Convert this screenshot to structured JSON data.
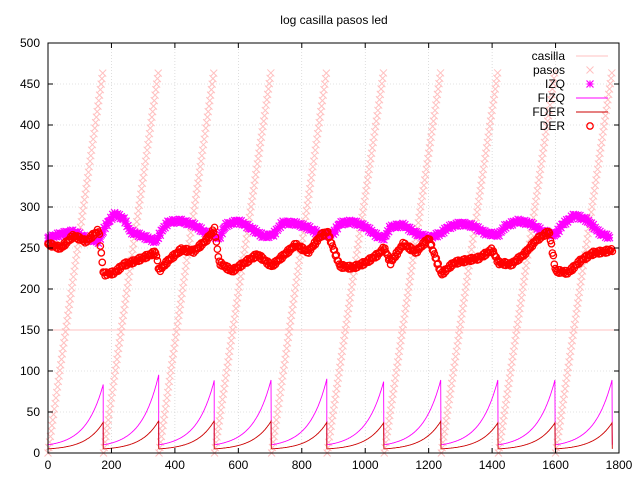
{
  "chart_data": {
    "type": "line",
    "title": "log casilla pasos led",
    "xlabel": "",
    "ylabel": "",
    "xlim": [
      0,
      1800
    ],
    "ylim": [
      0,
      500
    ],
    "x_ticks": [
      0,
      200,
      400,
      600,
      800,
      1000,
      1200,
      1400,
      1600,
      1800
    ],
    "y_ticks": [
      0,
      50,
      100,
      150,
      200,
      250,
      300,
      350,
      400,
      450,
      500
    ],
    "grid": true,
    "legend_position": "top-right",
    "cycle_starts": [
      0,
      175,
      350,
      525,
      705,
      880,
      1060,
      1240,
      1420,
      1600,
      1780
    ],
    "series": [
      {
        "name": "casilla",
        "style": "line",
        "color": "#ffc0c0",
        "constant_value": 150
      },
      {
        "name": "pasos",
        "style": "points",
        "marker": "x",
        "color": "#ffc0c0",
        "ramp_min": 0,
        "ramp_max": 470
      },
      {
        "name": "IZQ",
        "style": "points",
        "marker": "star",
        "color": "#ff00ff",
        "x": [
          0,
          40,
          80,
          120,
          160,
          180,
          210,
          240,
          260,
          300,
          340,
          360,
          380,
          420,
          460,
          500,
          540,
          560,
          600,
          640,
          680,
          710,
          740,
          780,
          820,
          860,
          900,
          920,
          960,
          1000,
          1040,
          1060,
          1080,
          1120,
          1160,
          1200,
          1240,
          1260,
          1300,
          1340,
          1380,
          1420,
          1440,
          1480,
          1520,
          1560,
          1600,
          1620,
          1660,
          1700,
          1740,
          1770
        ],
        "y": [
          262,
          267,
          270,
          262,
          258,
          276,
          292,
          285,
          270,
          264,
          258,
          272,
          282,
          283,
          278,
          268,
          262,
          278,
          283,
          274,
          264,
          266,
          281,
          280,
          275,
          266,
          268,
          280,
          282,
          276,
          264,
          262,
          276,
          278,
          268,
          262,
          268,
          275,
          280,
          277,
          268,
          266,
          276,
          283,
          280,
          270,
          266,
          278,
          290,
          284,
          268,
          263
        ]
      },
      {
        "name": "FIZQ",
        "style": "line",
        "color": "#ff00ff",
        "cycle_start_value": 10,
        "cycle_peak_values": [
          85,
          97,
          90,
          92,
          92,
          90,
          92,
          92,
          92,
          92
        ]
      },
      {
        "name": "FDER",
        "style": "line",
        "color": "#cc0000",
        "cycle_start_value": 5,
        "cycle_peak_values": [
          38,
          40,
          40,
          40,
          38,
          38,
          40,
          38,
          38,
          38
        ]
      },
      {
        "name": "DER",
        "style": "points",
        "marker": "circle",
        "color": "#ff0000",
        "x": [
          0,
          40,
          80,
          120,
          160,
          175,
          210,
          240,
          260,
          300,
          340,
          350,
          380,
          420,
          460,
          500,
          525,
          540,
          580,
          620,
          660,
          705,
          740,
          780,
          820,
          860,
          880,
          920,
          960,
          1000,
          1040,
          1060,
          1080,
          1120,
          1160,
          1200,
          1240,
          1280,
          1320,
          1360,
          1400,
          1420,
          1460,
          1500,
          1540,
          1580,
          1600,
          1640,
          1680,
          1720,
          1760,
          1780
        ],
        "y": [
          255,
          250,
          265,
          258,
          272,
          218,
          220,
          230,
          232,
          238,
          245,
          222,
          235,
          248,
          246,
          260,
          273,
          232,
          222,
          232,
          242,
          228,
          240,
          254,
          245,
          265,
          270,
          228,
          226,
          232,
          242,
          250,
          232,
          255,
          245,
          262,
          218,
          232,
          235,
          238,
          248,
          232,
          230,
          242,
          260,
          270,
          222,
          220,
          235,
          244,
          246,
          248
        ]
      }
    ]
  }
}
